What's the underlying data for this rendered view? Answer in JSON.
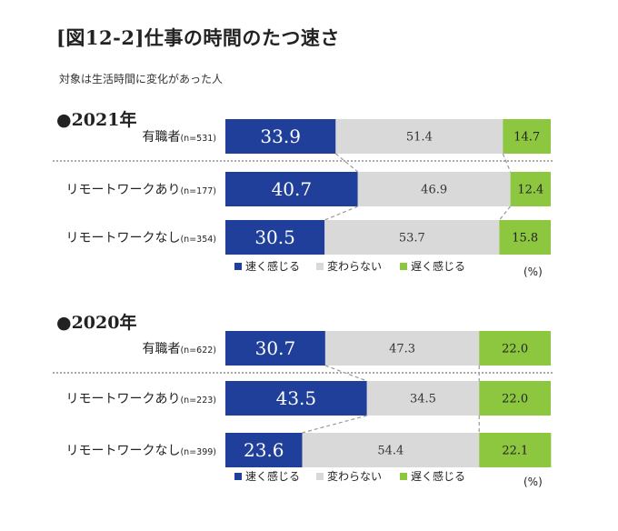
{
  "title": "[図12-2]仕事の時間のたつ速さ",
  "subtitle": "対象は生活時間に変化があった人",
  "colors": {
    "fast": "#1f3f9b",
    "same": "#d9d9d9",
    "slow": "#8dc63f"
  },
  "legend": [
    "速く感じる",
    "変わらない",
    "遅く感じる"
  ],
  "unit": "(%)",
  "chart_data": [
    {
      "type": "bar",
      "stacked": true,
      "orientation": "horizontal",
      "title": "●2021年",
      "categories": [
        "有職者",
        "リモートワークあり",
        "リモートワークなし"
      ],
      "n_labels": [
        "(n=531)",
        "(n=177)",
        "(n=354)"
      ],
      "series": [
        {
          "name": "速く感じる",
          "values": [
            33.9,
            40.7,
            30.5
          ]
        },
        {
          "name": "変わらない",
          "values": [
            51.4,
            46.9,
            53.7
          ]
        },
        {
          "name": "遅く感じる",
          "values": [
            14.7,
            12.4,
            15.8
          ]
        }
      ],
      "xlim": [
        0,
        100
      ]
    },
    {
      "type": "bar",
      "stacked": true,
      "orientation": "horizontal",
      "title": "●2020年",
      "categories": [
        "有職者",
        "リモートワークあり",
        "リモートワークなし"
      ],
      "n_labels": [
        "(n=622)",
        "(n=223)",
        "(n=399)"
      ],
      "series": [
        {
          "name": "速く感じる",
          "values": [
            30.7,
            43.5,
            23.6
          ]
        },
        {
          "name": "変わらない",
          "values": [
            47.3,
            34.5,
            54.4
          ]
        },
        {
          "name": "遅く感じる",
          "values": [
            22.0,
            22.0,
            22.1
          ]
        }
      ],
      "xlim": [
        0,
        100
      ]
    }
  ]
}
